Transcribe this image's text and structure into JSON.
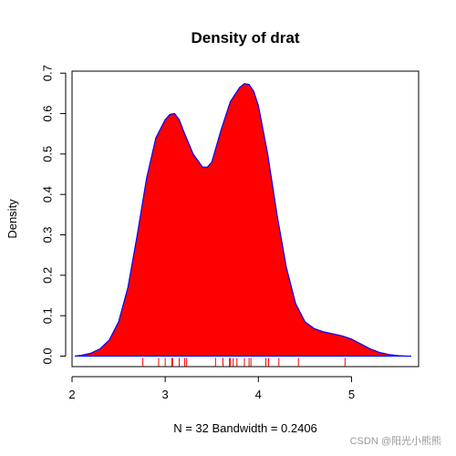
{
  "chart_data": {
    "type": "area",
    "title": "Density of drat",
    "xlabel": "N = 32   Bandwidth = 0.2406",
    "ylabel": "Density",
    "xlim": [
      2.0,
      5.72
    ],
    "ylim": [
      -0.026,
      0.705
    ],
    "xticks": [
      2,
      3,
      4,
      5
    ],
    "yticks": [
      0.0,
      0.1,
      0.2,
      0.3,
      0.4,
      0.5,
      0.6,
      0.7
    ],
    "ytick_labels": [
      "0.0",
      "0.1",
      "0.2",
      "0.3",
      "0.4",
      "0.5",
      "0.6",
      "0.7"
    ],
    "fill_color": "#ff0000",
    "line_color": "#0000ff",
    "rug_color": "#ff0000",
    "series": [
      {
        "x": [
          2.03,
          2.1,
          2.2,
          2.3,
          2.4,
          2.5,
          2.6,
          2.7,
          2.8,
          2.9,
          3.0,
          3.05,
          3.1,
          3.15,
          3.2,
          3.3,
          3.4,
          3.45,
          3.5,
          3.6,
          3.7,
          3.8,
          3.85,
          3.9,
          3.95,
          4.0,
          4.1,
          4.2,
          4.3,
          4.4,
          4.5,
          4.6,
          4.7,
          4.8,
          4.9,
          5.0,
          5.1,
          5.2,
          5.3,
          5.4,
          5.5,
          5.6,
          5.64
        ],
        "y": [
          0.0,
          0.002,
          0.007,
          0.018,
          0.04,
          0.085,
          0.17,
          0.3,
          0.44,
          0.54,
          0.585,
          0.598,
          0.6,
          0.585,
          0.555,
          0.5,
          0.468,
          0.467,
          0.48,
          0.56,
          0.63,
          0.665,
          0.674,
          0.672,
          0.655,
          0.62,
          0.5,
          0.35,
          0.22,
          0.13,
          0.085,
          0.068,
          0.06,
          0.055,
          0.05,
          0.042,
          0.03,
          0.018,
          0.009,
          0.004,
          0.001,
          0.0,
          0.0
        ]
      }
    ],
    "rug": [
      2.76,
      2.93,
      3.0,
      3.07,
      3.08,
      3.15,
      3.21,
      3.23,
      3.54,
      3.62,
      3.69,
      3.7,
      3.73,
      3.77,
      3.85,
      3.9,
      3.92,
      4.08,
      4.11,
      4.22,
      4.43,
      4.93
    ]
  },
  "watermark": "CSDN @阳光小熊熊"
}
